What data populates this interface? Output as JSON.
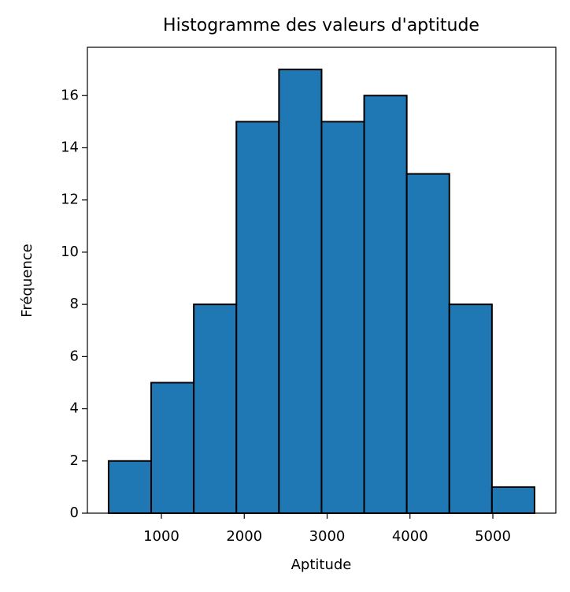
{
  "chart_data": {
    "type": "histogram",
    "title": "Histogramme des valeurs d'aptitude",
    "xlabel": "Aptitude",
    "ylabel": "Fréquence",
    "bins": [
      363,
      877,
      1391,
      1905,
      2419,
      2933,
      3447,
      3961,
      4475,
      4989,
      5503
    ],
    "values": [
      2,
      5,
      8,
      15,
      17,
      15,
      16,
      13,
      8,
      1
    ],
    "color": "#1f77b4",
    "edgecolor": "#000000",
    "xlim": [
      107,
      5760
    ],
    "xticks": [
      1000,
      2000,
      3000,
      4000,
      5000
    ],
    "ylim": [
      0,
      17.85
    ],
    "yticks": [
      0,
      2,
      4,
      6,
      8,
      10,
      12,
      14,
      16
    ]
  }
}
